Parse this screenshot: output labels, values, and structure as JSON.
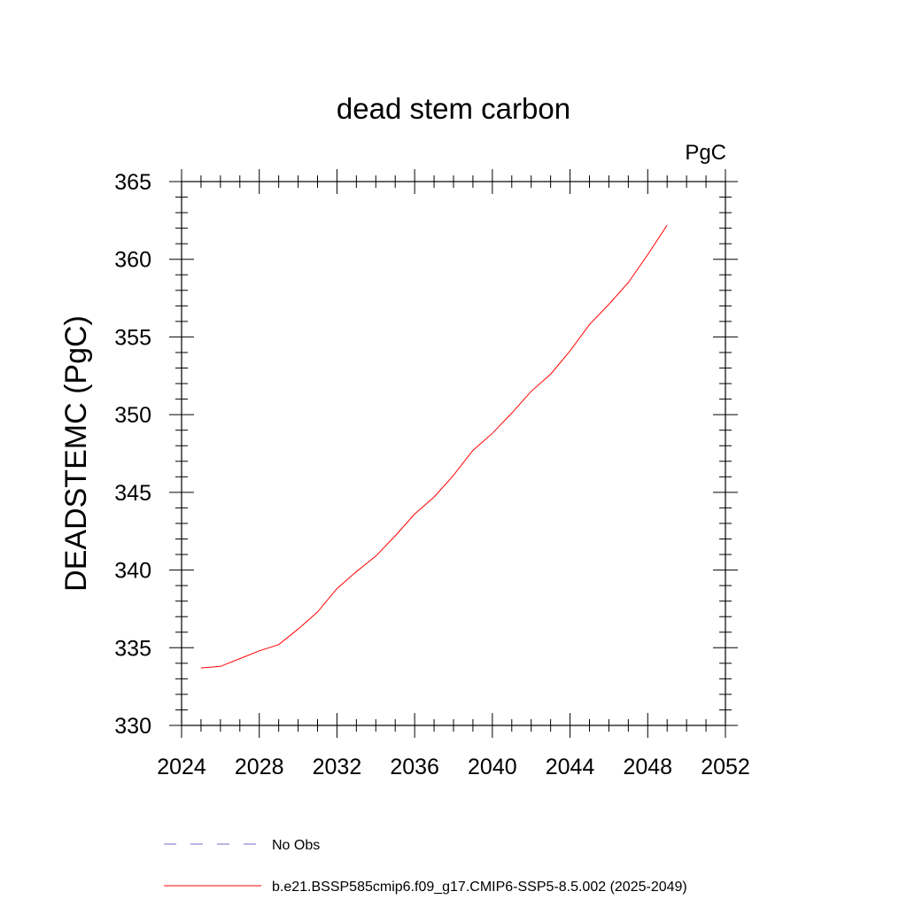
{
  "chart_data": {
    "type": "line",
    "title": "dead stem carbon",
    "units": "PgC",
    "ylabel": "DEADSTEMC  (PgC)",
    "xlabel": "",
    "xlim": [
      2024,
      2052
    ],
    "ylim": [
      330,
      365
    ],
    "xticks": [
      2024,
      2028,
      2032,
      2036,
      2040,
      2044,
      2048,
      2052
    ],
    "yticks": [
      330,
      335,
      340,
      345,
      350,
      355,
      360,
      365
    ],
    "grid": false,
    "legend_position": "bottom",
    "series": [
      {
        "name": "No Obs",
        "color": "#7b68c8",
        "dash": "dashed",
        "x": [],
        "y": []
      },
      {
        "name": "b.e21.BSSP585cmip6.f09_g17.CMIP6-SSP5-8.5.002 (2025-2049)",
        "color": "#ff0000",
        "dash": "solid",
        "x": [
          2025,
          2026,
          2027,
          2028,
          2029,
          2030,
          2031,
          2032,
          2033,
          2034,
          2035,
          2036,
          2037,
          2038,
          2039,
          2040,
          2041,
          2042,
          2043,
          2044,
          2045,
          2046,
          2047,
          2048,
          2049
        ],
        "y": [
          333.7,
          333.8,
          334.3,
          334.8,
          335.2,
          336.2,
          337.3,
          338.8,
          339.9,
          340.9,
          342.2,
          343.6,
          344.7,
          346.1,
          347.7,
          348.8,
          350.1,
          351.5,
          352.6,
          354.1,
          355.8,
          357.1,
          358.5,
          360.3,
          362.2
        ]
      }
    ]
  }
}
